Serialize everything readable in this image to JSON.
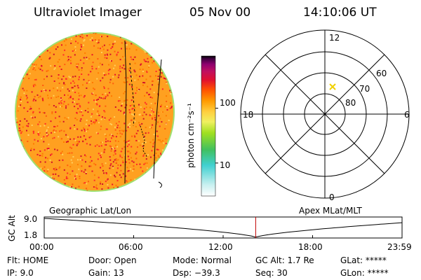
{
  "header": {
    "instrument": "Ultraviolet Imager",
    "date": "05 Nov 00",
    "time": "14:10:06 UT"
  },
  "colorbar": {
    "label": "photon cm⁻²s⁻¹",
    "ticks": [
      {
        "value": 10,
        "label": "10"
      },
      {
        "value": 100,
        "label": "100"
      }
    ],
    "scale": "log",
    "range": [
      2.5,
      900
    ],
    "colors": [
      "#ffffff",
      "#c8f0f0",
      "#40d0d0",
      "#40c060",
      "#a0e020",
      "#f0f060",
      "#ffd040",
      "#ff9a00",
      "#ff5000",
      "#e01030",
      "#c01060",
      "#900070",
      "#400040",
      "#000000"
    ]
  },
  "polar_plot": {
    "mlt_labels": {
      "top": "12",
      "bottom": "0",
      "left": "18",
      "right": "6"
    },
    "lat_labels": [
      "60",
      "70",
      "80"
    ],
    "marker_color": "#f0d000"
  },
  "timeline": {
    "left_caption": "Geographic Lat/Lon",
    "right_caption": "Apex MLat/MLT",
    "axis_title": "GC Alt",
    "y_ticks": [
      "9.0",
      "1.8"
    ],
    "x_ticks": [
      "00:00",
      "06:00",
      "12:00",
      "18:00",
      "23:59"
    ],
    "current_time_fraction": 0.591,
    "marker_color": "#c00000"
  },
  "info": {
    "flt": "Flt: HOME",
    "ip": "IP:  9.0",
    "door": "Door: Open",
    "gain": "Gain: 13",
    "mode": "Mode: Normal",
    "dsp": "Dsp:  −39.3",
    "gcalt": "GC Alt: 1.7 Re",
    "seq": "Seq: 30",
    "glat": "GLat: *****",
    "glon": "GLon: *****"
  }
}
